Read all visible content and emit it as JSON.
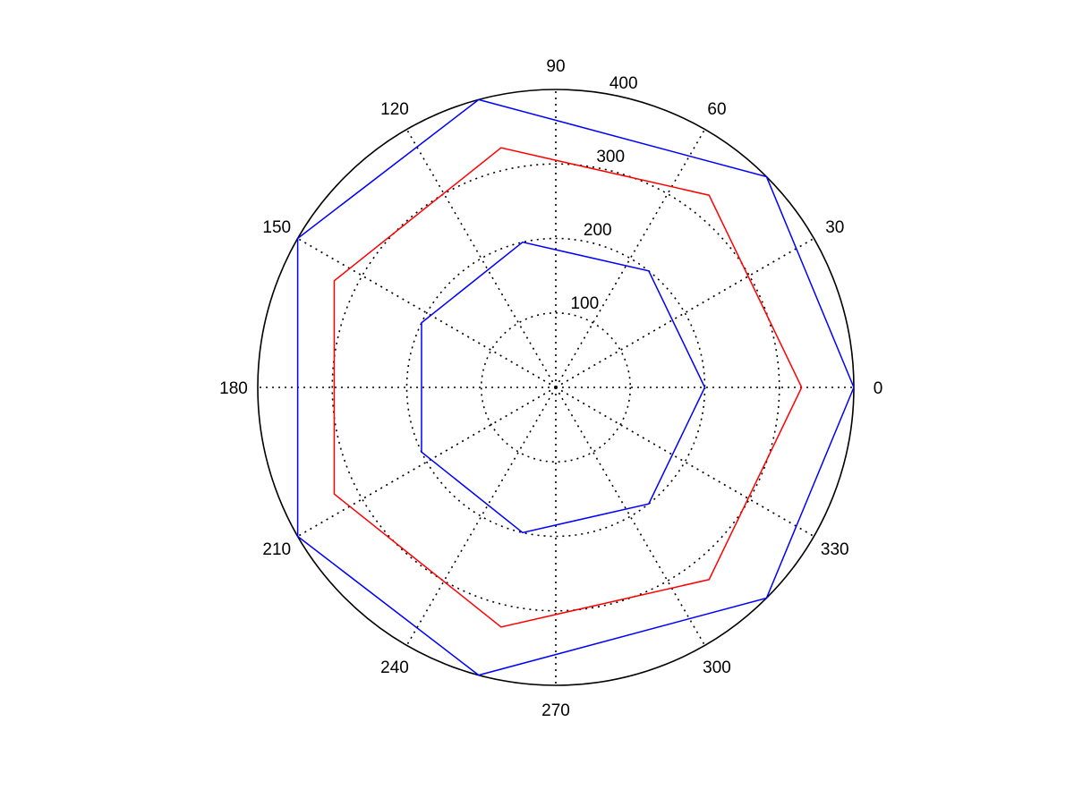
{
  "chart_data": {
    "type": "polar-line",
    "title": "",
    "angle_unit": "degrees",
    "radial_range": [
      0,
      400
    ],
    "radial_ticks": [
      100,
      200,
      300,
      400
    ],
    "radial_tick_labels": [
      "100",
      "200",
      "300",
      "400"
    ],
    "angular_ticks": [
      0,
      30,
      60,
      90,
      120,
      150,
      180,
      210,
      240,
      270,
      300,
      330
    ],
    "angular_tick_labels": [
      "0",
      "30",
      "60",
      "90",
      "120",
      "150",
      "180",
      "210",
      "240",
      "270",
      "300",
      "330"
    ],
    "grid": true,
    "grid_style": "dotted",
    "series": [
      {
        "color": "#0000ff",
        "points": [
          [
            0,
            200
          ],
          [
            51.43,
            200
          ],
          [
            102.86,
            200
          ],
          [
            154.29,
            200
          ],
          [
            205.71,
            200
          ],
          [
            257.14,
            200
          ],
          [
            308.57,
            200
          ],
          [
            360,
            200
          ]
        ]
      },
      {
        "color": "#ff0000",
        "points": [
          [
            0,
            330
          ],
          [
            51.43,
            330
          ],
          [
            102.86,
            330
          ],
          [
            154.29,
            330
          ],
          [
            205.71,
            330
          ],
          [
            257.14,
            330
          ],
          [
            308.57,
            330
          ],
          [
            360,
            330
          ]
        ]
      },
      {
        "color": "#0000ff",
        "points": [
          [
            0,
            400
          ],
          [
            45,
            400
          ],
          [
            105,
            400
          ],
          [
            150,
            400
          ],
          [
            210,
            400
          ],
          [
            255,
            400
          ],
          [
            315,
            400
          ],
          [
            360,
            400
          ]
        ]
      }
    ]
  }
}
